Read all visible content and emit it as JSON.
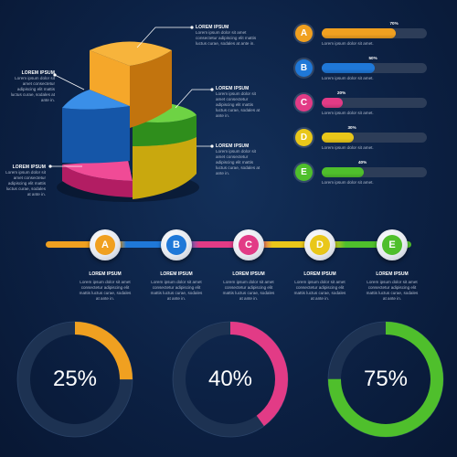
{
  "colors": {
    "A": "#f0a020",
    "B": "#1f78d8",
    "C": "#e23b86",
    "D": "#e9c71a",
    "E": "#4fbf2c"
  },
  "pie_labels": [
    {
      "title": "LOREM IPSUM",
      "desc": "Lorem ipsum dolor sit amet consectetur adipiscing elit mattis luctus curae, sodales at ante in."
    },
    {
      "title": "LOREM IPSUM",
      "desc": "Lorem ipsum dolor sit amet consectetur adipiscing elit mattis luctus curae, sodales at ante in."
    },
    {
      "title": "LOREM IPSUM",
      "desc": "Lorem ipsum dolor sit amet consectetur adipiscing elit mattis luctus curae, sodales at ante in."
    },
    {
      "title": "LOREM IPSUM",
      "desc": "Lorem ipsum dolor sit amet consectetur adipiscing elit mattis luctus curae, sodales at ante in."
    },
    {
      "title": "LOREM IPSUM",
      "desc": "Lorem ipsum dolor sit amet consectetur adipiscing elit mattis luctus curae, sodales at ante in."
    }
  ],
  "bars_desc": "Lorem ipsum dolor sit amet.",
  "steps": [
    {
      "letter": "A",
      "title": "LOREM IPSUM",
      "desc": "Lorem ipsum dolor sit amet consectetur adipiscing elit mattis luctus curae, sodales at ante in."
    },
    {
      "letter": "B",
      "title": "LOREM IPSUM",
      "desc": "Lorem ipsum dolor sit amet consectetur adipiscing elit mattis luctus curae, sodales at ante in."
    },
    {
      "letter": "C",
      "title": "LOREM IPSUM",
      "desc": "Lorem ipsum dolor sit amet consectetur adipiscing elit mattis luctus curae, sodales at ante in."
    },
    {
      "letter": "D",
      "title": "LOREM IPSUM",
      "desc": "Lorem ipsum dolor sit amet consectetur adipiscing elit mattis luctus curae, sodales at ante in."
    },
    {
      "letter": "E",
      "title": "LOREM IPSUM",
      "desc": "Lorem ipsum dolor sit amet consectetur adipiscing elit mattis luctus curae, sodales at ante in."
    }
  ],
  "chart_data": [
    {
      "type": "pie",
      "style": "3d",
      "slices": [
        {
          "color": "#f0a020"
        },
        {
          "color": "#1f78d8"
        },
        {
          "color": "#e23b86"
        },
        {
          "color": "#e9c71a"
        },
        {
          "color": "#4fbf2c"
        }
      ]
    },
    {
      "type": "bar",
      "orientation": "horizontal",
      "categories": [
        "A",
        "B",
        "C",
        "D",
        "E"
      ],
      "values": [
        70,
        50,
        20,
        30,
        40
      ],
      "value_labels": [
        "70%",
        "50%",
        "20%",
        "30%",
        "40%"
      ],
      "xlim": [
        0,
        100
      ]
    },
    {
      "type": "pie",
      "style": "donut",
      "charts": [
        {
          "value": 25,
          "label": "25%",
          "color": "#f0a020"
        },
        {
          "value": 40,
          "label": "40%",
          "color": "#e23b86"
        },
        {
          "value": 75,
          "label": "75%",
          "color": "#4fbf2c"
        }
      ]
    }
  ]
}
